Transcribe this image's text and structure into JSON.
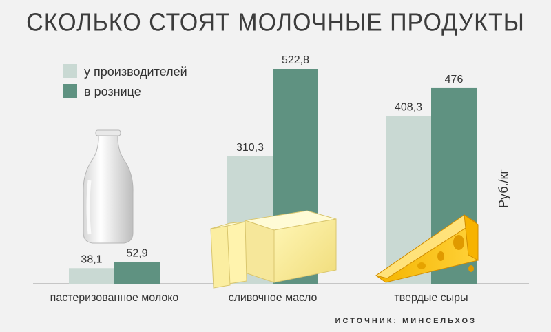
{
  "title": "СКОЛЬКО СТОЯТ МОЛОЧНЫЕ ПРОДУКТЫ",
  "source": "ИСТОЧНИК: МИНСЕЛЬХОЗ",
  "chart_data": {
    "type": "bar",
    "title": "СКОЛЬКО СТОЯТ МОЛОЧНЫЕ ПРОДУКТЫ",
    "categories": [
      "пастеризованное молоко",
      "сливочное масло",
      "твердые сыры"
    ],
    "series": [
      {
        "name": "у производителей",
        "values": [
          38.1,
          310.3,
          408.3
        ],
        "labels": [
          "38,1",
          "310,3",
          "408,3"
        ],
        "color": "#c9d9d3"
      },
      {
        "name": "в рознице",
        "values": [
          52.9,
          522.8,
          476
        ],
        "labels": [
          "52,9",
          "522,8",
          "476"
        ],
        "color": "#5f9281"
      }
    ],
    "ylabel": "Руб./кг",
    "ylim": [
      0,
      560
    ],
    "grid": false,
    "legend": "top-left"
  },
  "images": [
    "milk-bottle",
    "butter-block",
    "cheese-wedge"
  ]
}
